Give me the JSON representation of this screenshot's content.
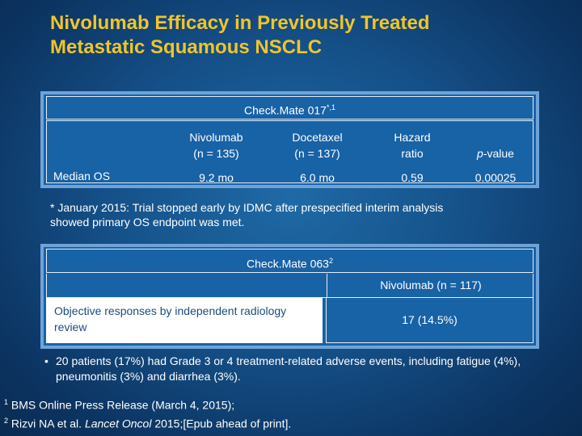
{
  "title": {
    "line1": "Nivolumab Efficacy in Previously Treated",
    "line2": "Metastatic Squamous NSCLC"
  },
  "table1": {
    "heading": "Check.Mate 017",
    "heading_sup": "*,1",
    "columns": [
      {
        "line1": "Nivolumab",
        "line2": "(n = 135)"
      },
      {
        "line1": "Docetaxel",
        "line2": "(n = 137)"
      },
      {
        "line1": "Hazard",
        "line2": "ratio"
      },
      {
        "line1": "",
        "line2": "p-value"
      }
    ],
    "row_label": "Median OS",
    "values": [
      "9.2 mo",
      "6.0 mo",
      "0.59",
      "0.00025"
    ]
  },
  "note": {
    "line1": "* January 2015: Trial stopped early by IDMC after prespecified interim analysis",
    "line2": "showed primary OS endpoint was met."
  },
  "table2": {
    "heading": "Check.Mate 063",
    "heading_sup": "2",
    "column_label": "Nivolumab (n = 117)",
    "row_label": "Objective responses by independent radiology review",
    "value": "17 (14.5%)"
  },
  "bullets": [
    "20 patients (17%) had Grade 3 or 4 treatment-related adverse events, including fatigue (4%), pneumonitis (3%) and diarrhea (3%)."
  ],
  "references": {
    "ref1_num": "1",
    "ref1_text": "BMS Online Press Release (March 4, 2015);",
    "ref2_num": "2",
    "ref2_authors": "Rizvi NA et al.",
    "ref2_journal": "Lancet Oncol",
    "ref2_rest": "2015;[Epub ahead of print]."
  },
  "colors": {
    "title": "#f0c52a",
    "background": "#155088",
    "table_fill": "#1862a6",
    "table_border": "#6fa3d8"
  }
}
